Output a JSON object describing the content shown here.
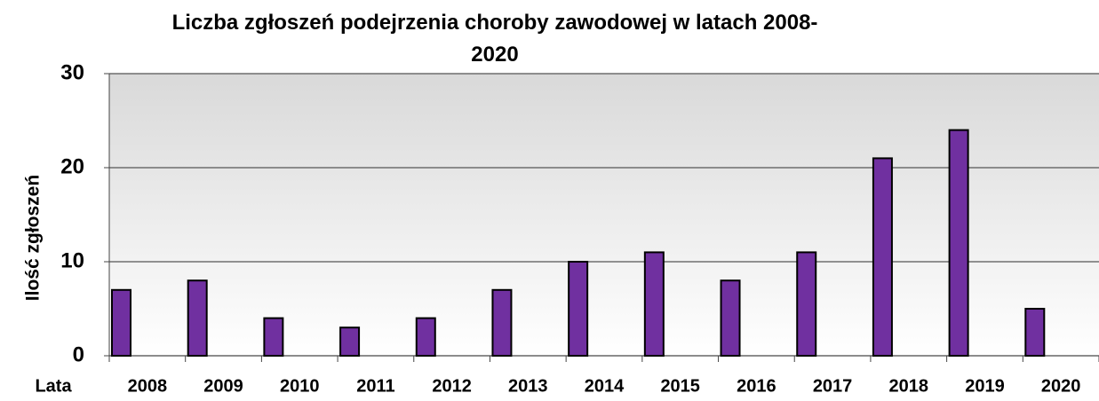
{
  "chart_data": {
    "type": "bar",
    "title": "Liczba zgłoszeń podejrzenia choroby zawodowej w latach 2008-2020",
    "y_label": "Ilość zgłoszeń",
    "x_label": "Lata",
    "categories": [
      "2008",
      "2009",
      "2010",
      "2011",
      "2012",
      "2013",
      "2014",
      "2015",
      "2016",
      "2017",
      "2018",
      "2019",
      "2020"
    ],
    "values": [
      7,
      8,
      4,
      3,
      4,
      7,
      10,
      11,
      8,
      11,
      21,
      24,
      5
    ],
    "color": "#7030a0",
    "ylim": [
      0,
      30
    ],
    "yticks": [
      0,
      10,
      20,
      30
    ],
    "grid": true
  }
}
